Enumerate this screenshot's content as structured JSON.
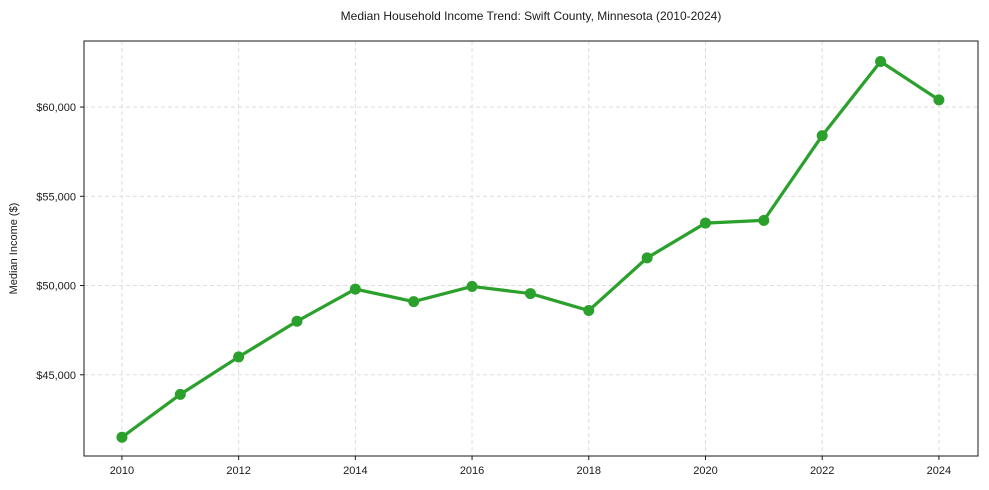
{
  "figure": {
    "title": "Median Household Income Trend: Swift County, Minnesota (2010-2024)"
  },
  "chart_data": {
    "type": "line",
    "title": "Median Household Income Trend: Swift County, Minnesota (2010-2024)",
    "xlabel": "",
    "ylabel": "Median Income ($)",
    "series": [
      {
        "name": "Median household income",
        "x": [
          2010,
          2011,
          2012,
          2013,
          2014,
          2015,
          2016,
          2017,
          2018,
          2019,
          2020,
          2021,
          2022,
          2023,
          2024
        ],
        "values": [
          41500,
          43900,
          46000,
          48000,
          49800,
          49100,
          49950,
          49550,
          48600,
          51550,
          53500,
          53650,
          58400,
          62550,
          60400
        ]
      }
    ],
    "xlim": [
      2009.35,
      2024.67
    ],
    "ylim": [
      40450,
      63700
    ],
    "xticks": [
      2010,
      2012,
      2014,
      2016,
      2018,
      2020,
      2022,
      2024
    ],
    "yticks": [
      45000,
      50000,
      55000,
      60000
    ],
    "ytick_prefix": "$",
    "grid": true,
    "grid_style": "dashed",
    "legend": false,
    "line_color": "#2ca02c",
    "marker": "circle",
    "grid_color": "#d9d9d9",
    "axis_color": "#1a1a1a",
    "tick_label_color": "#1a1a1a"
  }
}
